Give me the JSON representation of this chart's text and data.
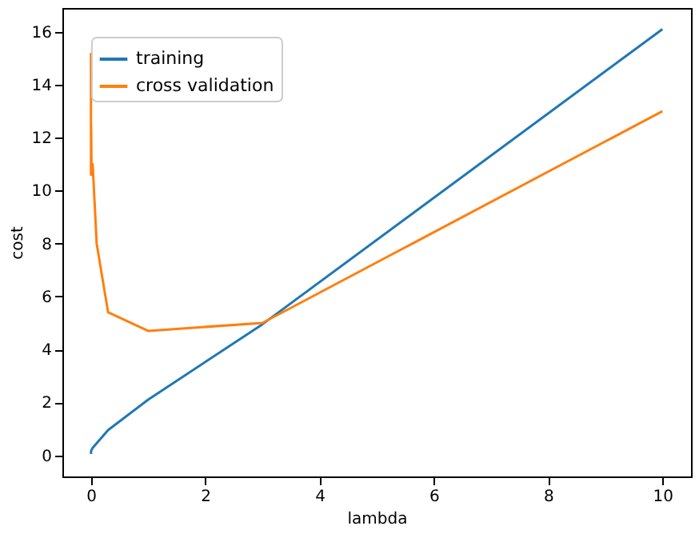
{
  "chart_data": {
    "type": "line",
    "xlabel": "lambda",
    "ylabel": "cost",
    "x": [
      0,
      0.001,
      0.003,
      0.01,
      0.03,
      0.1,
      0.3,
      1,
      3,
      10
    ],
    "series": [
      {
        "name": "training",
        "color": "#1f77b4",
        "values": [
          0.05,
          0.1,
          0.15,
          0.2,
          0.28,
          0.45,
          0.95,
          2.1,
          4.95,
          16.1
        ]
      },
      {
        "name": "cross validation",
        "color": "#ff7f0e",
        "values": [
          15.2,
          10.6,
          12.5,
          10.6,
          11.0,
          8.0,
          5.4,
          4.7,
          5.0,
          13.0
        ]
      }
    ],
    "xlim": [
      -0.5,
      10.5
    ],
    "xticks": [
      0,
      2,
      4,
      6,
      8,
      10
    ],
    "ylim": [
      -0.8,
      16.9
    ],
    "yticks": [
      0,
      2,
      4,
      6,
      8,
      10,
      12,
      14,
      16
    ],
    "grid": false,
    "legend": "top left",
    "line_style": "solid",
    "marker": "none"
  }
}
